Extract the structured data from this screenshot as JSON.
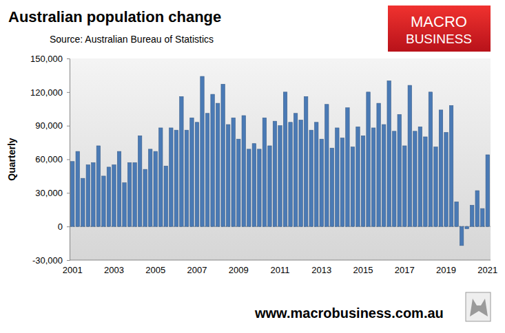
{
  "chart_data": {
    "type": "bar",
    "title": "Australian population change",
    "subtitle": "Source: Australian Bureau of Statistics",
    "y_label": "Quarterly",
    "annotations": [
      "MACRO",
      "BUSINESS",
      "www.macrobusiness.com.au"
    ],
    "categories": [
      "2001",
      null,
      null,
      null,
      null,
      null,
      null,
      null,
      "2003",
      null,
      null,
      null,
      null,
      null,
      null,
      null,
      "2005",
      null,
      null,
      null,
      null,
      null,
      null,
      null,
      "2007",
      null,
      null,
      null,
      null,
      null,
      null,
      null,
      "2009",
      null,
      null,
      null,
      null,
      null,
      null,
      null,
      "2011",
      null,
      null,
      null,
      null,
      null,
      null,
      null,
      "2013",
      null,
      null,
      null,
      null,
      null,
      null,
      null,
      "2015",
      null,
      null,
      null,
      null,
      null,
      null,
      null,
      "2017",
      null,
      null,
      null,
      null,
      null,
      null,
      null,
      "2019",
      null,
      null,
      null,
      null,
      null,
      null,
      null,
      "2021"
    ],
    "values": [
      58000,
      67000,
      43000,
      55000,
      57000,
      72000,
      45000,
      53000,
      55000,
      67000,
      39000,
      57000,
      57000,
      81000,
      51000,
      69000,
      67000,
      88000,
      54000,
      88000,
      86000,
      116000,
      86000,
      97000,
      93000,
      134000,
      101000,
      118000,
      110000,
      127000,
      91000,
      97000,
      78000,
      99000,
      69000,
      74000,
      69000,
      97000,
      72000,
      94000,
      90000,
      120000,
      93000,
      101000,
      95000,
      116000,
      86000,
      93000,
      78000,
      109000,
      70000,
      88000,
      79000,
      106000,
      71000,
      89000,
      81000,
      120000,
      88000,
      110000,
      91000,
      130000,
      85000,
      100000,
      72000,
      126000,
      85000,
      89000,
      80000,
      120000,
      71000,
      104000,
      84000,
      108000,
      22000,
      -17000,
      -2000,
      19000,
      32000,
      16000,
      64000
    ],
    "color": "#4a7ab5",
    "ylim": [
      -30000,
      150000
    ],
    "yticks": [
      {
        "value": -30000,
        "label": "-30,000"
      },
      0,
      {
        "value": 30000,
        "label": "30,000"
      },
      {
        "value": 60000,
        "label": "60,000"
      },
      {
        "value": 90000,
        "label": "90,000"
      },
      {
        "value": 120000,
        "label": "120,000"
      },
      {
        "value": 150000,
        "label": "150,000"
      }
    ],
    "grid": false
  }
}
